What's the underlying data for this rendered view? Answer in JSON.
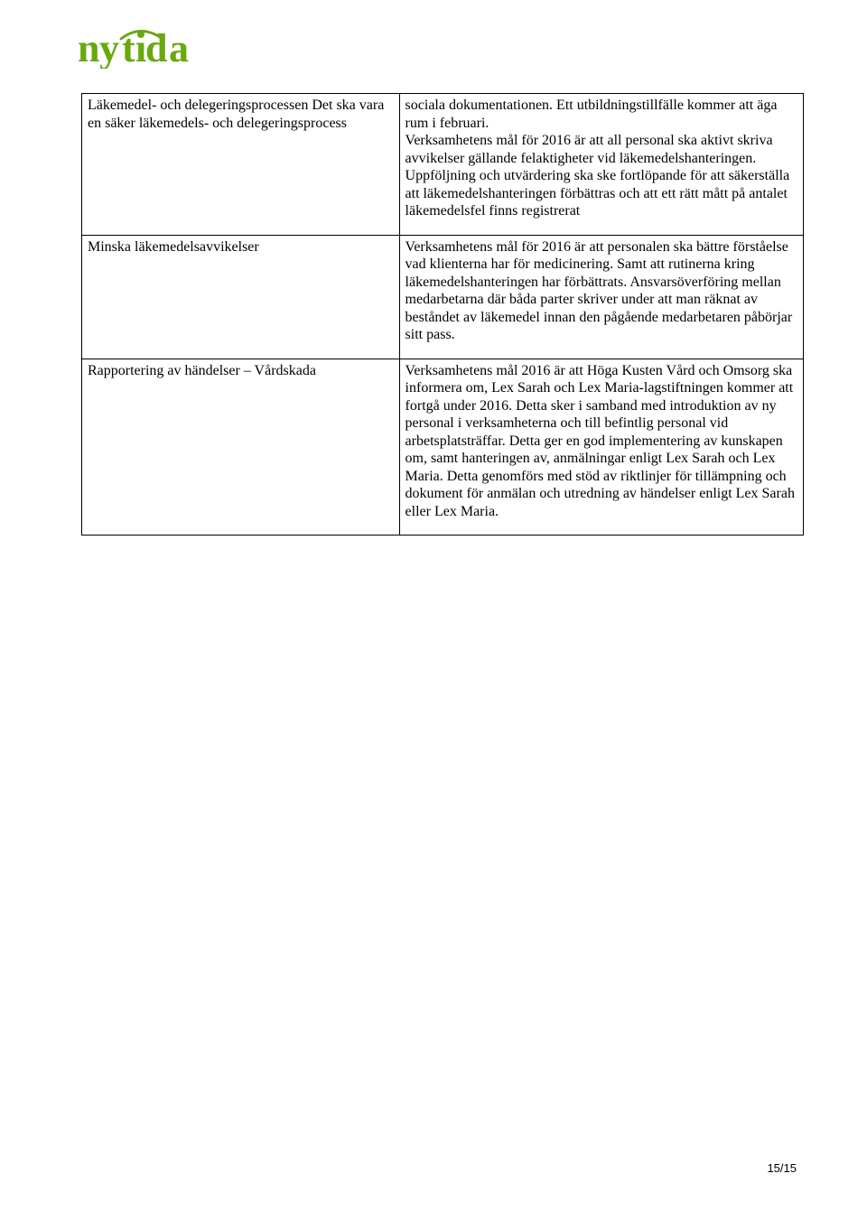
{
  "logo_text": "nytida",
  "logo_color": "#69a80f",
  "table": {
    "border_color": "#000000",
    "background_color": "#ffffff",
    "text_color": "#000000",
    "font_family": "Times New Roman",
    "cell_fontsize": 16,
    "columns": [
      {
        "width_percent": 44
      },
      {
        "width_percent": 56
      }
    ],
    "rows": [
      {
        "left": "Läkemedel- och delegeringsprocessen Det ska vara en säker läkemedels- och delegeringsprocess",
        "right": "sociala dokumentationen. Ett utbildningstillfälle kommer att äga rum i februari.\nVerksamhetens mål för 2016 är att all personal ska aktivt skriva avvikelser gällande felaktigheter vid läkemedelshanteringen. Uppföljning och utvärdering ska ske fortlöpande för att säkerställa att läkemedelshanteringen förbättras och att ett rätt mått på antalet läkemedelsfel finns registrerat"
      },
      {
        "left": "Minska läkemedelsavvikelser",
        "right": "Verksamhetens mål för 2016 är att personalen ska bättre förståelse vad klienterna har för medicinering. Samt att rutinerna kring läkemedelshanteringen har förbättrats. Ansvarsöverföring mellan medarbetarna där båda parter skriver under att man räknat av beståndet av läkemedel innan den pågående medarbetaren påbörjar sitt pass."
      },
      {
        "left": "Rapportering av händelser – Vårdskada",
        "right": "Verksamhetens mål 2016 är att Höga Kusten Vård och Omsorg ska informera om, Lex Sarah och Lex Maria-lagstiftningen kommer att fortgå under 2016. Detta sker i samband med introduktion av ny personal i verksamheterna och till befintlig personal vid arbetsplatsträffar. Detta ger en god implementering av kunskapen om, samt hanteringen av, anmälningar enligt Lex Sarah och Lex Maria. Detta genomförs med stöd av riktlinjer för tillämpning och dokument för anmälan och utredning av händelser enligt Lex Sarah eller Lex Maria."
      }
    ]
  },
  "page_number": "15/15"
}
